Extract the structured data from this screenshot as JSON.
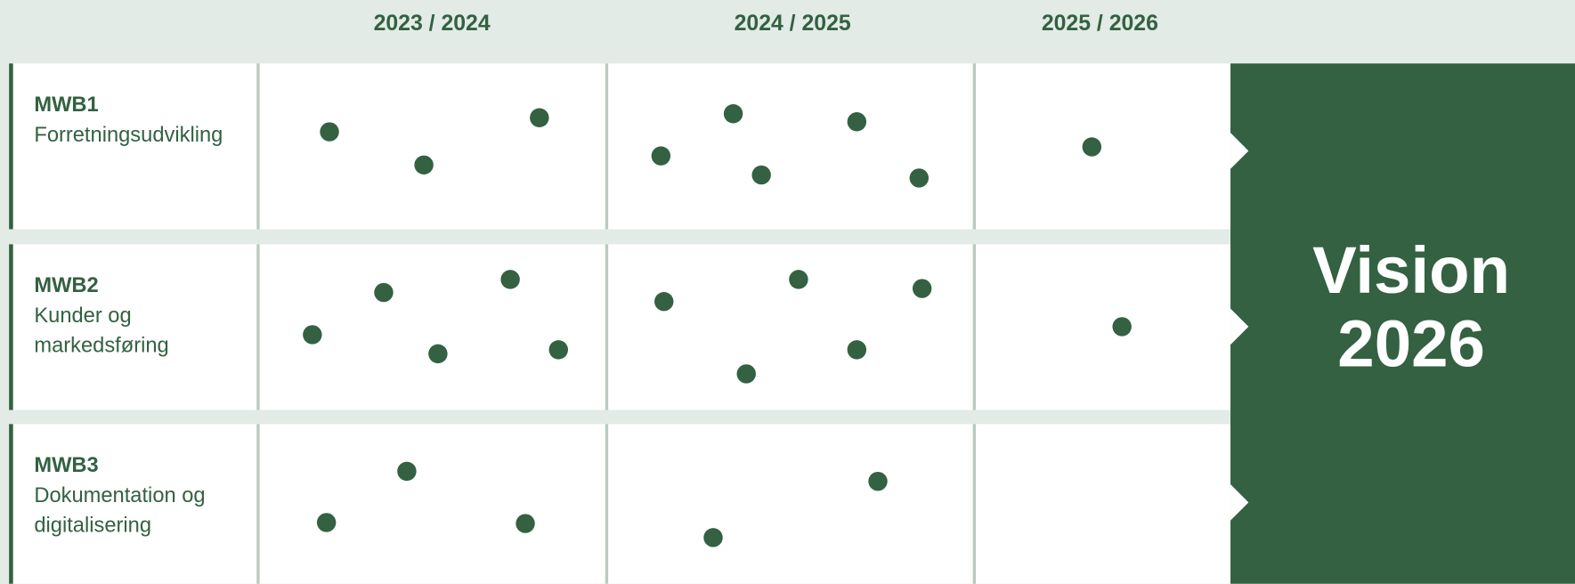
{
  "columns": [
    "2023 / 2024",
    "2024 / 2025",
    "2025 / 2026"
  ],
  "rows": [
    {
      "code": "MWB1",
      "label": [
        "Forretningsudvikling"
      ]
    },
    {
      "code": "MWB2",
      "label": [
        "Kunder og",
        "markedsføring"
      ]
    },
    {
      "code": "MWB3",
      "label": [
        "Dokumentation og",
        "digitalisering"
      ]
    }
  ],
  "vision": [
    "Vision",
    "2026"
  ]
}
